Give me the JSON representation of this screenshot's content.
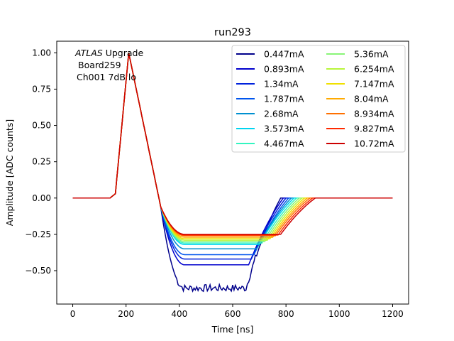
{
  "chart_data": {
    "type": "line",
    "title": "run293",
    "xlabel": "Time [ns]",
    "ylabel": "Amplitude [ADC counts]",
    "xlim": [
      -60,
      1260
    ],
    "ylim": [
      -0.73,
      1.08
    ],
    "xticks": [
      0,
      200,
      400,
      600,
      800,
      1000,
      1200
    ],
    "yticks": [
      -0.5,
      -0.25,
      0.0,
      0.25,
      0.5,
      0.75,
      1.0
    ],
    "xtick_labels": [
      "0",
      "200",
      "400",
      "600",
      "800",
      "1000",
      "1200"
    ],
    "ytick_labels": [
      "−0.50",
      "−0.25",
      "0.00",
      "0.25",
      "0.50",
      "0.75",
      "1.00"
    ],
    "annotation": {
      "italic": "ATLAS",
      "rest": " Upgrade",
      "line2": "Board259",
      "line3": "Ch001 7dB lo"
    },
    "legend_position": "top-right",
    "legend_columns": 2,
    "x_points": [
      0,
      140,
      150,
      160,
      170,
      180,
      190,
      200,
      210,
      220,
      230,
      240,
      250,
      260,
      270,
      280,
      290,
      300,
      310,
      320,
      330,
      340,
      350,
      360,
      380,
      400,
      430,
      460,
      500,
      550,
      600,
      640,
      650,
      660,
      680,
      700,
      720,
      740,
      760,
      780,
      800,
      820,
      840,
      860,
      880,
      900,
      1000,
      1100,
      1200
    ],
    "series": [
      {
        "name": "0.447mA",
        "color": "#00008b",
        "plateau": -0.62,
        "end": 650,
        "noisy": true
      },
      {
        "name": "0.893mA",
        "color": "#0000cd",
        "plateau": -0.46,
        "end": 660
      },
      {
        "name": "1.34mA",
        "color": "#0022dd",
        "plateau": -0.42,
        "end": 670
      },
      {
        "name": "1.787mA",
        "color": "#0055ee",
        "plateau": -0.39,
        "end": 680
      },
      {
        "name": "2.68mA",
        "color": "#0090d0",
        "plateau": -0.35,
        "end": 690
      },
      {
        "name": "3.573mA",
        "color": "#00d4f0",
        "plateau": -0.32,
        "end": 700
      },
      {
        "name": "4.467mA",
        "color": "#33f5c0",
        "plateau": -0.31,
        "end": 710
      },
      {
        "name": "5.36mA",
        "color": "#88f577",
        "plateau": -0.3,
        "end": 720
      },
      {
        "name": "6.254mA",
        "color": "#b8f53a",
        "plateau": -0.29,
        "end": 730
      },
      {
        "name": "7.147mA",
        "color": "#f0e000",
        "plateau": -0.28,
        "end": 740
      },
      {
        "name": "8.04mA",
        "color": "#ffaa00",
        "plateau": -0.27,
        "end": 750
      },
      {
        "name": "8.934mA",
        "color": "#ff7000",
        "plateau": -0.26,
        "end": 760
      },
      {
        "name": "9.827mA",
        "color": "#ff2a00",
        "plateau": -0.255,
        "end": 770
      },
      {
        "name": "10.72mA",
        "color": "#cc0000",
        "plateau": -0.25,
        "end": 780
      }
    ]
  }
}
